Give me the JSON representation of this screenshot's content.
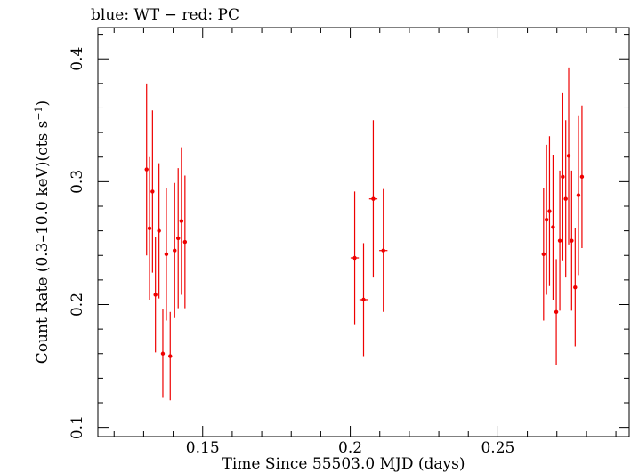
{
  "chart_data": {
    "type": "scatter",
    "title": "blue: WT − red: PC",
    "xlabel": "Time Since 55503.0 MJD (days)",
    "ylabel_main": "Count Rate (0.3–10.0 keV)(cts s",
    "ylabel_sup": "−1",
    "ylabel_end": ")",
    "xlim": [
      0.1145,
      0.2945
    ],
    "ylim": [
      0.0925,
      0.4255
    ],
    "xticks": [
      {
        "value": 0.15,
        "label": "0.15"
      },
      {
        "value": 0.2,
        "label": "0.2"
      },
      {
        "value": 0.25,
        "label": "0.25"
      }
    ],
    "yticks": [
      {
        "value": 0.1,
        "label": "0.1"
      },
      {
        "value": 0.2,
        "label": "0.2"
      },
      {
        "value": 0.3,
        "label": "0.3"
      },
      {
        "value": 0.4,
        "label": "0.4"
      }
    ],
    "series": [
      {
        "color": "#ee0000",
        "points": [
          {
            "x": 0.131,
            "y": 0.31,
            "xerr": 0.0006,
            "yerr_lo": 0.07,
            "yerr_hi": 0.07
          },
          {
            "x": 0.132,
            "y": 0.262,
            "xerr": 0.0006,
            "yerr_lo": 0.058,
            "yerr_hi": 0.058
          },
          {
            "x": 0.133,
            "y": 0.292,
            "xerr": 0.0006,
            "yerr_lo": 0.066,
            "yerr_hi": 0.066
          },
          {
            "x": 0.134,
            "y": 0.208,
            "xerr": 0.0006,
            "yerr_lo": 0.047,
            "yerr_hi": 0.047
          },
          {
            "x": 0.1352,
            "y": 0.26,
            "xerr": 0.0006,
            "yerr_lo": 0.055,
            "yerr_hi": 0.055
          },
          {
            "x": 0.1365,
            "y": 0.16,
            "xerr": 0.0006,
            "yerr_lo": 0.036,
            "yerr_hi": 0.036
          },
          {
            "x": 0.1377,
            "y": 0.241,
            "xerr": 0.0006,
            "yerr_lo": 0.054,
            "yerr_hi": 0.054
          },
          {
            "x": 0.139,
            "y": 0.158,
            "xerr": 0.0006,
            "yerr_lo": 0.036,
            "yerr_hi": 0.036
          },
          {
            "x": 0.1405,
            "y": 0.244,
            "xerr": 0.0006,
            "yerr_lo": 0.055,
            "yerr_hi": 0.055
          },
          {
            "x": 0.1417,
            "y": 0.254,
            "xerr": 0.0006,
            "yerr_lo": 0.057,
            "yerr_hi": 0.057
          },
          {
            "x": 0.1428,
            "y": 0.268,
            "xerr": 0.0006,
            "yerr_lo": 0.06,
            "yerr_hi": 0.06
          },
          {
            "x": 0.144,
            "y": 0.251,
            "xerr": 0.0006,
            "yerr_lo": 0.054,
            "yerr_hi": 0.054
          },
          {
            "x": 0.2015,
            "y": 0.238,
            "xerr": 0.0014,
            "yerr_lo": 0.054,
            "yerr_hi": 0.054
          },
          {
            "x": 0.2045,
            "y": 0.204,
            "xerr": 0.0014,
            "yerr_lo": 0.046,
            "yerr_hi": 0.046
          },
          {
            "x": 0.2078,
            "y": 0.286,
            "xerr": 0.0014,
            "yerr_lo": 0.064,
            "yerr_hi": 0.064
          },
          {
            "x": 0.2112,
            "y": 0.244,
            "xerr": 0.0014,
            "yerr_lo": 0.05,
            "yerr_hi": 0.05
          },
          {
            "x": 0.2655,
            "y": 0.241,
            "xerr": 0.0006,
            "yerr_lo": 0.054,
            "yerr_hi": 0.054
          },
          {
            "x": 0.2665,
            "y": 0.269,
            "xerr": 0.0006,
            "yerr_lo": 0.061,
            "yerr_hi": 0.061
          },
          {
            "x": 0.2675,
            "y": 0.276,
            "xerr": 0.0006,
            "yerr_lo": 0.061,
            "yerr_hi": 0.061
          },
          {
            "x": 0.2687,
            "y": 0.263,
            "xerr": 0.0006,
            "yerr_lo": 0.059,
            "yerr_hi": 0.059
          },
          {
            "x": 0.2698,
            "y": 0.194,
            "xerr": 0.0006,
            "yerr_lo": 0.043,
            "yerr_hi": 0.043
          },
          {
            "x": 0.271,
            "y": 0.252,
            "xerr": 0.0006,
            "yerr_lo": 0.057,
            "yerr_hi": 0.057
          },
          {
            "x": 0.272,
            "y": 0.304,
            "xerr": 0.0006,
            "yerr_lo": 0.068,
            "yerr_hi": 0.068
          },
          {
            "x": 0.273,
            "y": 0.286,
            "xerr": 0.0006,
            "yerr_lo": 0.064,
            "yerr_hi": 0.064
          },
          {
            "x": 0.274,
            "y": 0.321,
            "xerr": 0.0006,
            "yerr_lo": 0.072,
            "yerr_hi": 0.072
          },
          {
            "x": 0.275,
            "y": 0.252,
            "xerr": 0.0006,
            "yerr_lo": 0.057,
            "yerr_hi": 0.057
          },
          {
            "x": 0.2762,
            "y": 0.214,
            "xerr": 0.0006,
            "yerr_lo": 0.048,
            "yerr_hi": 0.048
          },
          {
            "x": 0.2773,
            "y": 0.289,
            "xerr": 0.0006,
            "yerr_lo": 0.065,
            "yerr_hi": 0.065
          },
          {
            "x": 0.2785,
            "y": 0.304,
            "xerr": 0.0006,
            "yerr_lo": 0.058,
            "yerr_hi": 0.058
          }
        ]
      }
    ]
  }
}
